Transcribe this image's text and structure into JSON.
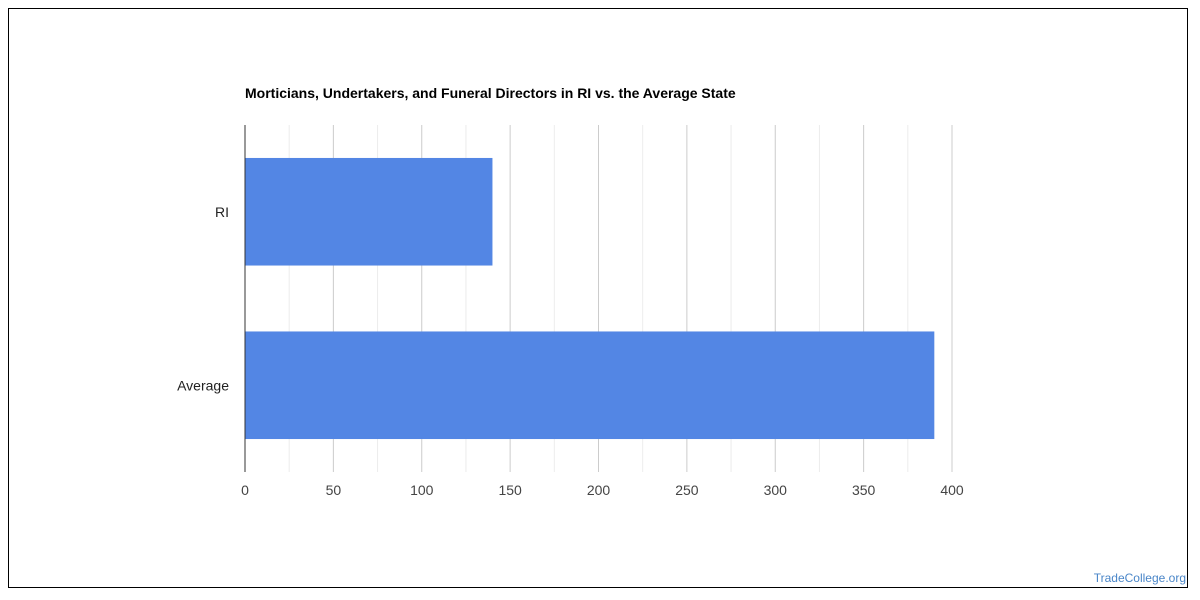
{
  "chart_data": {
    "type": "bar",
    "orientation": "horizontal",
    "title": "Morticians, Undertakers, and Funeral Directors in RI vs. the Average State",
    "categories": [
      "RI",
      "Average"
    ],
    "values": [
      140,
      390
    ],
    "xlim": [
      0,
      400
    ],
    "xticks": [
      "0",
      "50",
      "100",
      "150",
      "200",
      "250",
      "300",
      "350",
      "400"
    ],
    "xlabel": "",
    "ylabel": "",
    "grid": true,
    "bar_color": "#5386e4"
  },
  "watermark": "TradeCollege.org"
}
